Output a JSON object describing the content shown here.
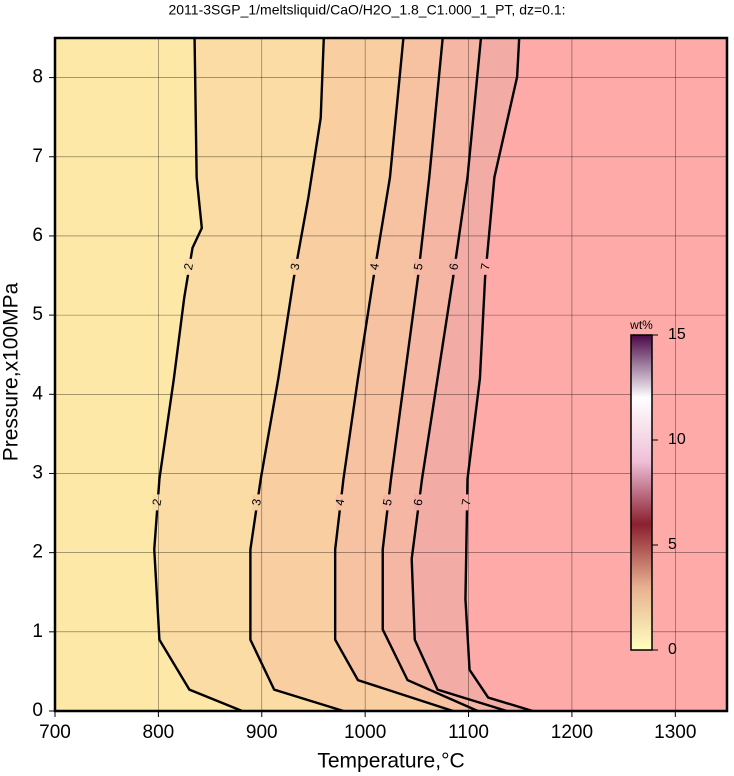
{
  "chart_data": {
    "type": "contour",
    "title": "2011-3SGP_1/meltsliquid/CaO/H2O_1.8_C1.000_1_PT, dz=0.1:",
    "xlabel": "Temperature,°C",
    "ylabel": "Pressure,x100MPa",
    "xlim": [
      700,
      1350
    ],
    "ylim": [
      0,
      8.5
    ],
    "xticks": [
      700,
      800,
      900,
      1000,
      1100,
      1200,
      1300
    ],
    "yticks": [
      0,
      1,
      2,
      3,
      4,
      5,
      6,
      7,
      8
    ],
    "grid": true,
    "background": "#fde8a8",
    "levels": [
      {
        "level": 2,
        "color": "#fbdca4",
        "x": [
          835,
          837,
          842,
          833,
          825,
          815,
          801,
          796,
          801,
          830,
          881
        ],
        "y": [
          8.5,
          6.74,
          6.1,
          5.85,
          5.22,
          4.2,
          2.93,
          2.04,
          0.9,
          0.27,
          0
        ]
      },
      {
        "level": 3,
        "color": "#f9cfa2",
        "x": [
          960,
          957,
          945,
          931,
          916,
          899,
          889,
          889,
          912,
          979
        ],
        "y": [
          8.5,
          7.49,
          6.48,
          5.47,
          4.2,
          2.93,
          2.04,
          0.9,
          0.27,
          0
        ]
      },
      {
        "level": 4,
        "color": "#f7c2a2",
        "x": [
          1037,
          1024,
          1008,
          993,
          979,
          971,
          971,
          993,
          1085
        ],
        "y": [
          8.5,
          6.74,
          5.47,
          4.2,
          2.93,
          2.04,
          0.9,
          0.39,
          0
        ]
      },
      {
        "level": 5,
        "color": "#f5b6a3",
        "x": [
          1075,
          1062,
          1051,
          1038,
          1025,
          1017,
          1017,
          1041,
          1109
        ],
        "y": [
          8.5,
          6.74,
          5.47,
          4.2,
          2.93,
          2.04,
          1.03,
          0.39,
          0
        ]
      },
      {
        "level": 6,
        "color": "#f2aba5",
        "x": [
          1112,
          1099,
          1085,
          1070,
          1055,
          1045,
          1048,
          1070,
          1137
        ],
        "y": [
          8.5,
          6.74,
          5.47,
          4.2,
          2.93,
          1.92,
          0.9,
          0.27,
          0
        ]
      },
      {
        "level": 7,
        "color": "#fdaaa8",
        "x": [
          1149,
          1147,
          1125,
          1116,
          1111,
          1099,
          1097,
          1101,
          1119,
          1162
        ],
        "y": [
          8.5,
          8.01,
          6.74,
          5.47,
          4.2,
          2.93,
          1.41,
          0.52,
          0.17,
          0
        ]
      }
    ],
    "colorbar": {
      "label": "wt%",
      "lim": [
        0,
        15
      ],
      "ticks": [
        0,
        5,
        10,
        15
      ],
      "colors": [
        "#ffffc0",
        "#e8b090",
        "#8a2030",
        "#f0c0d8",
        "#ffffff",
        "#4a0848"
      ]
    }
  }
}
